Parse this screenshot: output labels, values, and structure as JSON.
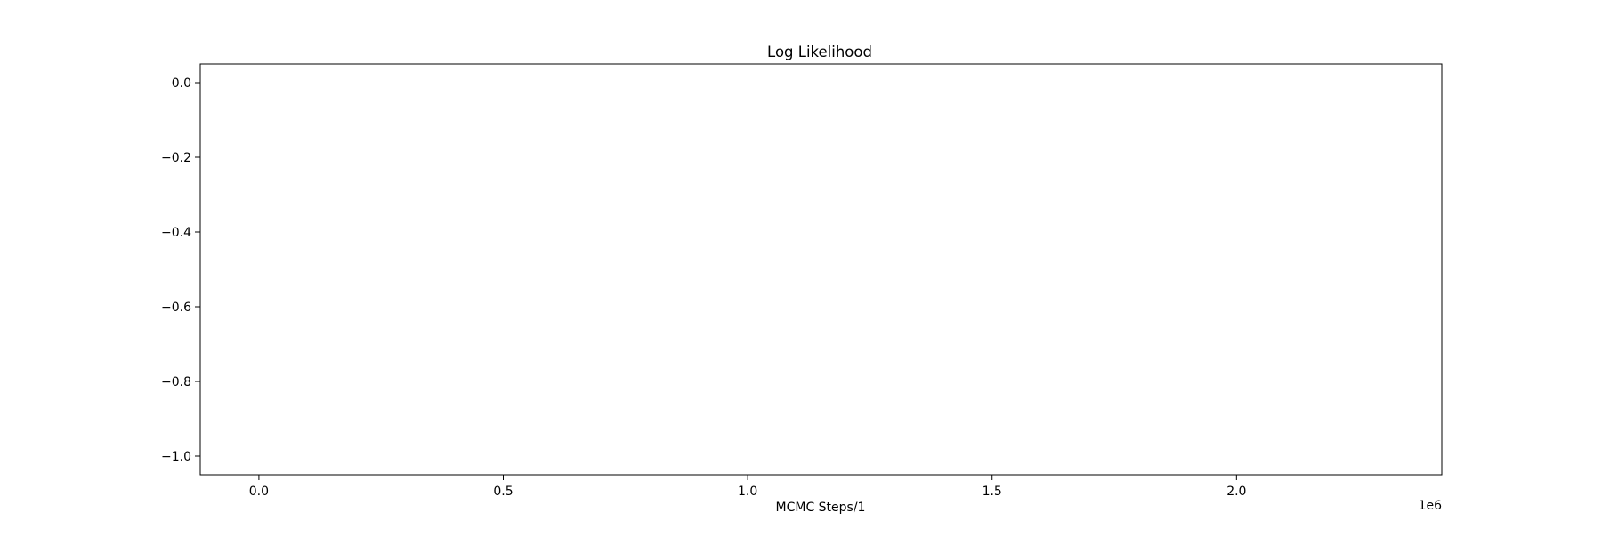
{
  "chart_data": {
    "type": "line",
    "title": "Log Likelihood",
    "xlabel": "MCMC Steps/1",
    "ylabel": "",
    "x_offset_label": "1e6",
    "xlim": [
      -0.12,
      2.42
    ],
    "ylim": [
      -1.05,
      0.05
    ],
    "xticks": [
      0.0,
      0.5,
      1.0,
      1.5,
      2.0
    ],
    "xtick_labels": [
      "0.0",
      "0.5",
      "1.0",
      "1.5",
      "2.0"
    ],
    "yticks": [
      0.0,
      -0.2,
      -0.4,
      -0.6,
      -0.8,
      -1.0
    ],
    "ytick_labels": [
      "0.0",
      "−0.2",
      "−0.4",
      "−0.6",
      "−0.8",
      "−1.0"
    ],
    "grid": false,
    "series": []
  }
}
